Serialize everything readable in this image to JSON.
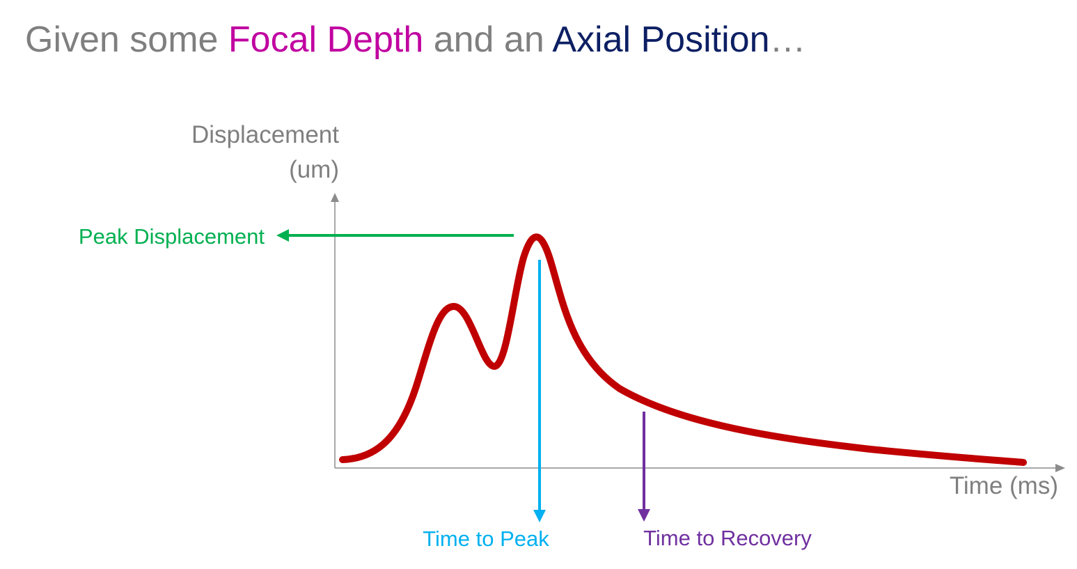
{
  "title": {
    "prefix": "Given some ",
    "focal": "Focal Depth",
    "middle": " and an ",
    "axial": "Axial Position",
    "suffix": "…"
  },
  "axes": {
    "y_label_line1": "Displacement",
    "y_label_line2": "(um)",
    "x_label": "Time (ms)"
  },
  "annotations": {
    "peak_displacement": "Peak Displacement",
    "time_to_peak": "Time to Peak",
    "time_to_recovery": "Time to Recovery"
  },
  "colors": {
    "title_gray": "#7f7f7f",
    "focal_depth": "#c000a0",
    "axial_position": "#0d1f63",
    "curve": "#c00000",
    "peak_displacement": "#00b050",
    "time_to_peak": "#00b0f0",
    "time_to_recovery": "#7030a0",
    "axis": "#8c8c8c"
  }
}
